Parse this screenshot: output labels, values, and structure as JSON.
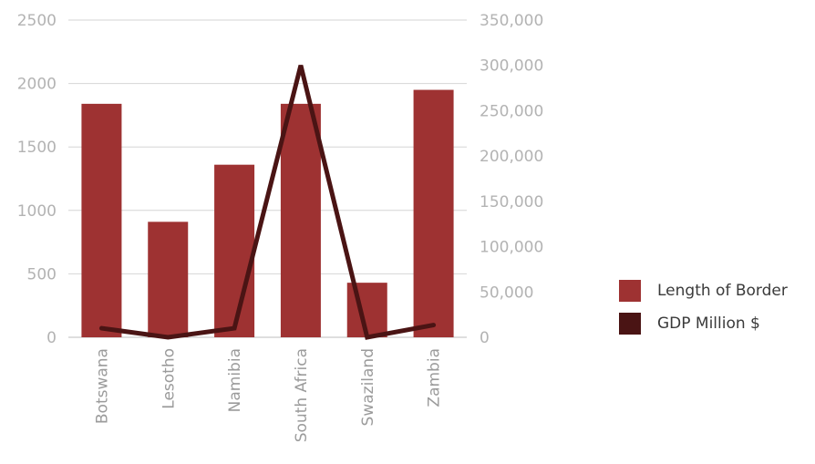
{
  "chart_data": {
    "type": "bar",
    "categories": [
      "Botswana",
      "Lesotho",
      "Namibia",
      "South Africa",
      "Swaziland",
      "Zambia"
    ],
    "series": [
      {
        "name": "Length of Border",
        "kind": "bar",
        "axis": "left",
        "color": "#9e3232",
        "values": [
          1840,
          910,
          1360,
          1840,
          430,
          1950
        ]
      },
      {
        "name": "GDP Million $",
        "kind": "line",
        "axis": "right",
        "color": "#4a1414",
        "values": [
          10000,
          0,
          10000,
          300000,
          0,
          13500
        ]
      }
    ],
    "y_left": {
      "ylim": [
        0,
        2500
      ],
      "ticks": [
        "0",
        "500",
        "1000",
        "1500",
        "2000",
        "2500"
      ],
      "tick_values": [
        0,
        500,
        1000,
        1500,
        2000,
        2500
      ]
    },
    "y_right": {
      "ylim": [
        0,
        350000
      ],
      "ticks": [
        "0",
        "50,000",
        "100,000",
        "150,000",
        "200,000",
        "250,000",
        "300,000",
        "350,000"
      ],
      "tick_values": [
        0,
        50000,
        100000,
        150000,
        200000,
        250000,
        300000,
        350000
      ]
    },
    "grid": true,
    "legend_position": "right"
  }
}
